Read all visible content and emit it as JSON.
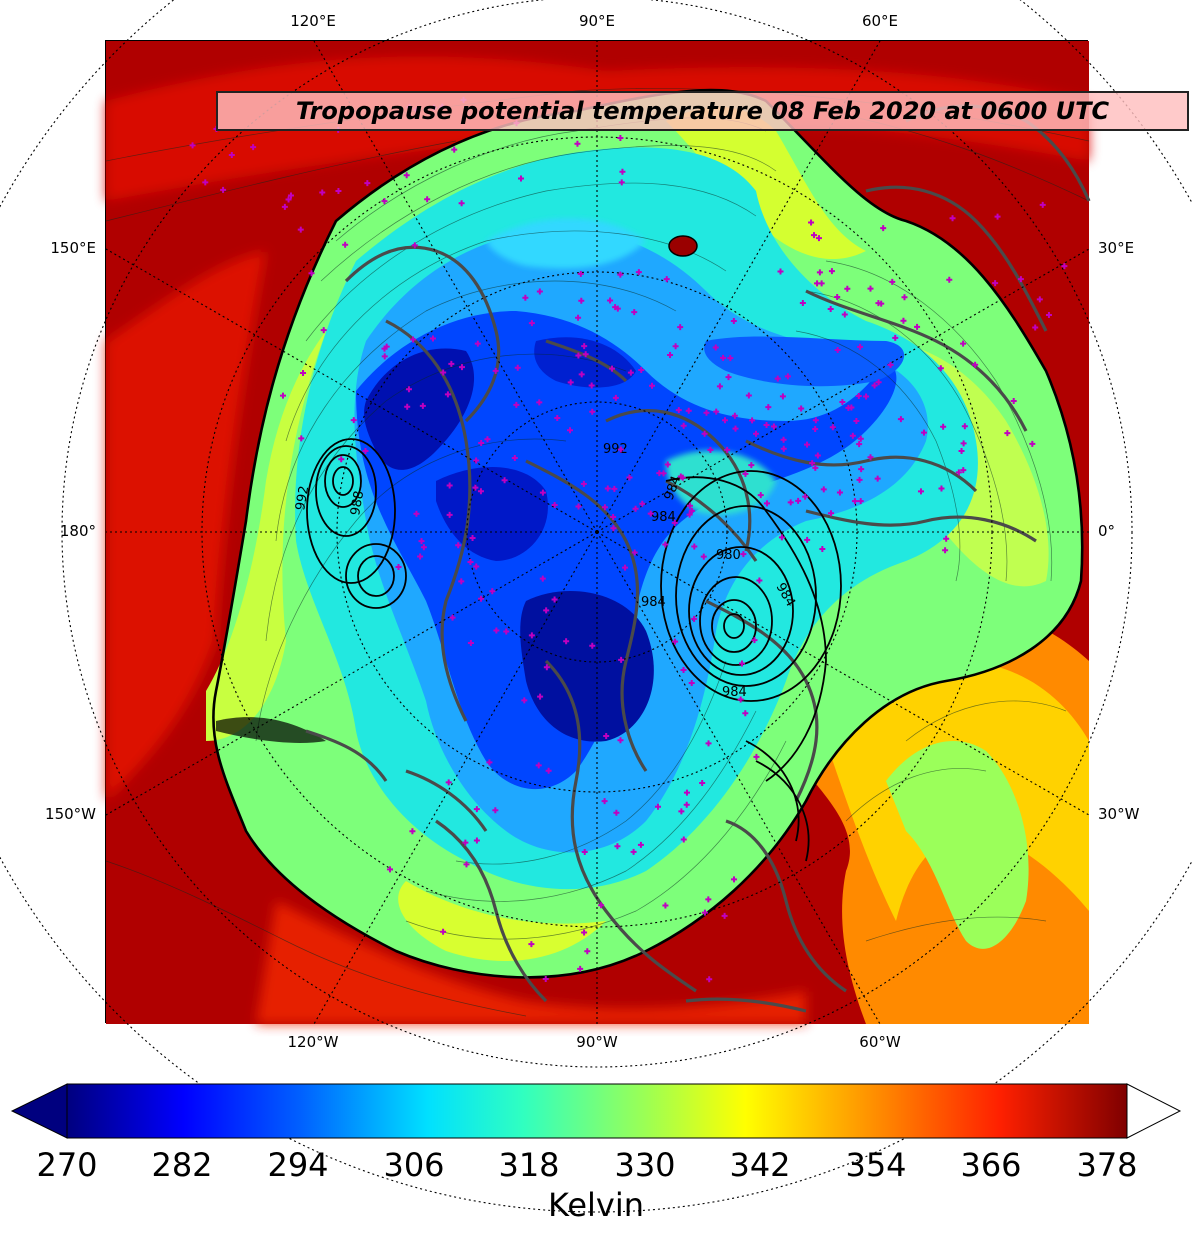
{
  "title": "Tropopause potential temperature 08 Feb 2020 at 0600 UTC",
  "lon_labels_top": [
    "120°E",
    "90°E",
    "60°E"
  ],
  "lon_labels_bottom": [
    "120°W",
    "90°W",
    "60°W"
  ],
  "lon_labels_left": [
    "150°E",
    "180°",
    "150°W"
  ],
  "lon_labels_right": [
    "30°E",
    "0°",
    "30°W"
  ],
  "colorbar": {
    "label": "Kelvin",
    "ticks": [
      "270",
      "282",
      "294",
      "306",
      "318",
      "330",
      "342",
      "354",
      "366",
      "378"
    ],
    "min": 270,
    "max": 380,
    "extend": "both",
    "colormap": "jet",
    "under_color": "#00007f",
    "over_color": "#ffffff"
  },
  "pressure_contour_labels": [
    "992",
    "988",
    "992",
    "984",
    "984",
    "980",
    "984",
    "984",
    "984"
  ],
  "colors": {
    "station_marker": "#c000c0",
    "coastline": "#444444",
    "background_warm": "#b40000"
  }
}
